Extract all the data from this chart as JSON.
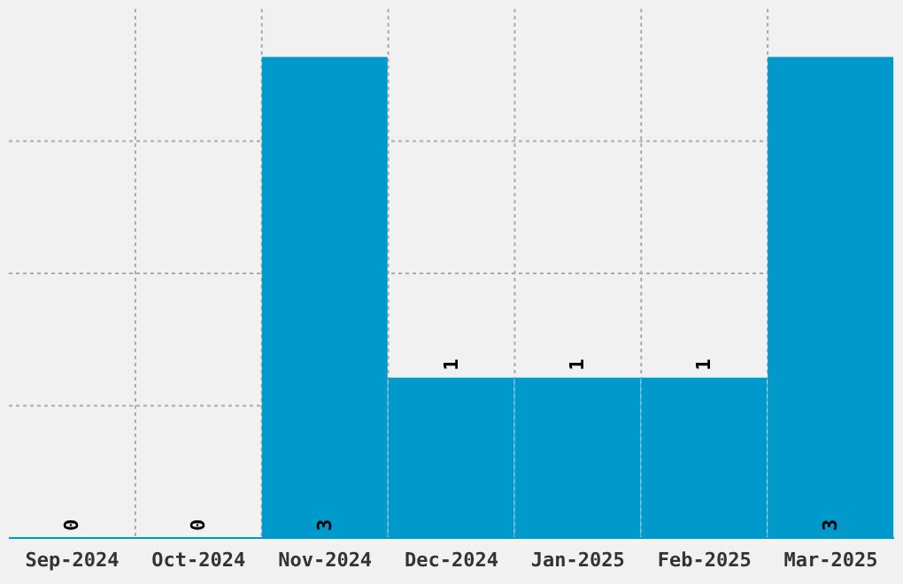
{
  "chart_data": {
    "type": "bar",
    "categories": [
      "Sep-2024",
      "Oct-2024",
      "Nov-2024",
      "Dec-2024",
      "Jan-2025",
      "Feb-2025",
      "Mar-2025"
    ],
    "values": [
      0,
      0,
      3,
      1,
      1,
      1,
      3
    ],
    "color": "#0099cc",
    "ylim": [
      0,
      3.3
    ],
    "grid": true,
    "data_labels": true,
    "tick_labels": "x",
    "legend": false
  }
}
